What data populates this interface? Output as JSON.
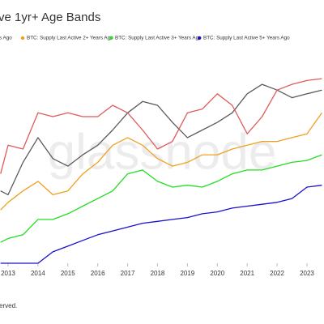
{
  "chart_data": {
    "type": "line",
    "title": "ve 1yr+ Age Bands",
    "footer": "erved.",
    "watermark": "glassnode",
    "x": [
      2012.75,
      2013,
      2013.5,
      2014,
      2014.5,
      2015,
      2015.5,
      2016,
      2016.5,
      2017,
      2017.5,
      2018,
      2018.5,
      2019,
      2019.5,
      2020,
      2020.5,
      2021,
      2021.5,
      2022,
      2022.5,
      2023,
      2023.5
    ],
    "xlim": [
      2012.73,
      2023.57
    ],
    "xticks": [
      2013,
      2014,
      2015,
      2016,
      2017,
      2018,
      2019,
      2020,
      2021,
      2022,
      2023
    ],
    "ylim": [
      0,
      100
    ],
    "series": [
      {
        "color": "#5a5a5a",
        "values": [
          38,
          36,
          53,
          66,
          55,
          51,
          57,
          62,
          70,
          79,
          85,
          83,
          74,
          66,
          70,
          74,
          79,
          89,
          94,
          91,
          87,
          89,
          91
        ]
      },
      {
        "name": "s Ago",
        "color": "#e05a5a",
        "values": [
          47,
          62,
          60,
          79,
          77,
          79,
          77,
          77,
          83,
          79,
          70,
          60,
          64,
          79,
          81,
          89,
          83,
          68,
          77,
          91,
          94,
          96,
          97
        ]
      },
      {
        "name": "BTC: Supply Last Active 2+ Years Ago",
        "color": "#f0a020",
        "values": [
          28,
          32,
          38,
          43,
          36,
          38,
          47,
          53,
          62,
          66,
          62,
          55,
          51,
          53,
          57,
          57,
          60,
          62,
          64,
          64,
          66,
          68,
          79
        ]
      },
      {
        "name": "BTC: Supply Last Active 3+ Years Ago",
        "color": "#22dd22",
        "values": [
          11,
          13,
          15,
          23,
          23,
          26,
          30,
          34,
          38,
          47,
          49,
          43,
          40,
          41,
          40,
          43,
          47,
          49,
          49,
          51,
          53,
          54,
          57
        ]
      },
      {
        "name": "BTC: Supply Last Active 5+ Years Ago",
        "color": "#1a10cc",
        "values": [
          0,
          0,
          0,
          0,
          6,
          9,
          12,
          15,
          17,
          19,
          21,
          22,
          23,
          24,
          26,
          27,
          29,
          30,
          31,
          32,
          34,
          40,
          41
        ]
      }
    ]
  }
}
